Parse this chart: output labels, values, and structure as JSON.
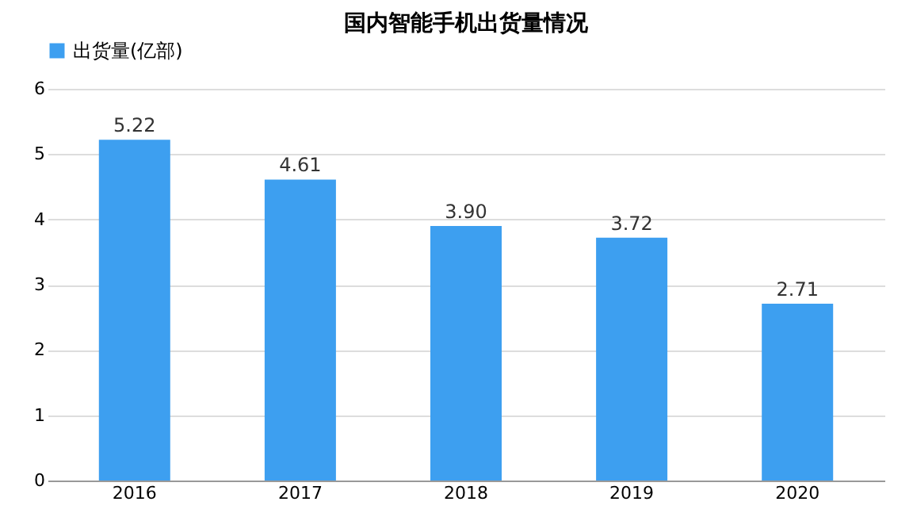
{
  "chart_data": {
    "type": "bar",
    "title": "国内智能手机出货量情况",
    "categories": [
      "2016",
      "2017",
      "2018",
      "2019",
      "2020"
    ],
    "series": [
      {
        "name": "出货量(亿部)",
        "color": "#3d9ff0",
        "values": [
          5.22,
          4.61,
          3.9,
          3.72,
          2.71
        ]
      }
    ],
    "value_labels": [
      "5.22",
      "4.61",
      "3.90",
      "3.72",
      "2.71"
    ],
    "ylim": [
      0,
      6
    ],
    "yticks": [
      0,
      1,
      2,
      3,
      4,
      5,
      6
    ],
    "grid": "y",
    "legend": "top"
  }
}
